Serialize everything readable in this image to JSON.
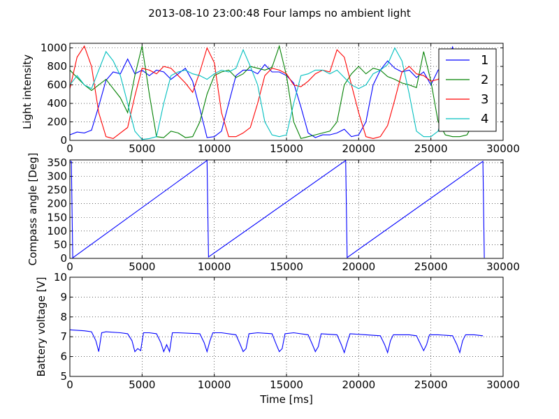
{
  "title": "2013-08-10 23:00:48 Four lamps no ambient light",
  "colors": {
    "series_1": "#0000ff",
    "series_2": "#008000",
    "series_3": "#ff0000",
    "series_4": "#00bfbf"
  },
  "chart_data": [
    {
      "type": "line",
      "ylabel": "Light intensity",
      "xlim": [
        0,
        30000
      ],
      "ylim": [
        0,
        1050
      ],
      "xticks": [
        "0",
        "5000",
        "10000",
        "15000",
        "20000",
        "25000",
        "30000"
      ],
      "yticks": [
        "0",
        "200",
        "400",
        "600",
        "800",
        "1000"
      ],
      "grid": true,
      "legend": "top-right",
      "series": [
        {
          "name": "1",
          "color": "#0000ff",
          "x": [
            0,
            500,
            1000,
            1500,
            2000,
            2500,
            3000,
            3500,
            4000,
            4500,
            5000,
            5500,
            6000,
            6500,
            7000,
            7500,
            8000,
            8500,
            9000,
            9500,
            10000,
            10500,
            11000,
            11500,
            12000,
            12500,
            13000,
            13500,
            14000,
            14500,
            15000,
            15500,
            16000,
            16500,
            17000,
            17500,
            18000,
            18500,
            19000,
            19500,
            20000,
            20500,
            21000,
            21500,
            22000,
            22500,
            23000,
            23500,
            24000,
            24500,
            25000,
            25500,
            26000,
            26500,
            27000,
            27500,
            28000,
            28500
          ],
          "y": [
            60,
            90,
            80,
            110,
            370,
            650,
            740,
            720,
            880,
            720,
            760,
            700,
            760,
            740,
            660,
            720,
            780,
            640,
            340,
            30,
            40,
            100,
            400,
            700,
            760,
            760,
            720,
            820,
            740,
            740,
            700,
            620,
            360,
            80,
            30,
            60,
            60,
            80,
            120,
            40,
            60,
            200,
            600,
            760,
            860,
            780,
            740,
            760,
            680,
            740,
            600,
            760,
            820,
            1010,
            700,
            760,
            740,
            780
          ]
        },
        {
          "name": "2",
          "color": "#008000",
          "x": [
            0,
            500,
            1000,
            1500,
            2000,
            2500,
            3000,
            3500,
            4000,
            4500,
            5000,
            5500,
            6000,
            6500,
            7000,
            7500,
            8000,
            8500,
            9000,
            9500,
            10000,
            10500,
            11000,
            11500,
            12000,
            12500,
            13000,
            13500,
            14000,
            14500,
            15000,
            15500,
            16000,
            16500,
            17000,
            17500,
            18000,
            18500,
            19000,
            19500,
            20000,
            20500,
            21000,
            21500,
            22000,
            22500,
            23000,
            23500,
            24000,
            24500,
            25000,
            25500,
            26000,
            26500,
            27000,
            27500,
            28000,
            28500
          ],
          "y": [
            760,
            680,
            600,
            540,
            600,
            660,
            560,
            460,
            300,
            700,
            1020,
            500,
            40,
            30,
            100,
            80,
            30,
            40,
            200,
            500,
            700,
            740,
            760,
            680,
            720,
            800,
            780,
            760,
            790,
            1020,
            700,
            200,
            20,
            40,
            60,
            80,
            100,
            200,
            600,
            720,
            800,
            720,
            780,
            760,
            690,
            660,
            620,
            600,
            570,
            960,
            640,
            200,
            60,
            40,
            40,
            60,
            200,
            500
          ]
        },
        {
          "name": "3",
          "color": "#ff0000",
          "x": [
            0,
            500,
            1000,
            1500,
            2000,
            2500,
            3000,
            3500,
            4000,
            4500,
            5000,
            5500,
            6000,
            6500,
            7000,
            7500,
            8000,
            8500,
            9000,
            9500,
            10000,
            10500,
            11000,
            11500,
            12000,
            12500,
            13000,
            13500,
            14000,
            14500,
            15000,
            15500,
            16000,
            16500,
            17000,
            17500,
            18000,
            18500,
            19000,
            19500,
            20000,
            20500,
            21000,
            21500,
            22000,
            22500,
            23000,
            23500,
            24000,
            24500,
            25000,
            25500,
            26000,
            26500,
            27000,
            27500,
            28000,
            28500
          ],
          "y": [
            560,
            900,
            1020,
            800,
            300,
            40,
            20,
            80,
            140,
            480,
            780,
            760,
            720,
            800,
            780,
            700,
            620,
            520,
            740,
            1000,
            840,
            300,
            40,
            40,
            80,
            140,
            400,
            700,
            780,
            760,
            720,
            600,
            580,
            640,
            720,
            760,
            740,
            980,
            900,
            600,
            300,
            40,
            20,
            40,
            160,
            440,
            740,
            800,
            720,
            700,
            640,
            660,
            740,
            820,
            800,
            740,
            640,
            600
          ]
        },
        {
          "name": "4",
          "color": "#00bfbf",
          "x": [
            0,
            500,
            1000,
            1500,
            2000,
            2500,
            3000,
            3500,
            4000,
            4500,
            5000,
            5500,
            6000,
            6500,
            7000,
            7500,
            8000,
            8500,
            9000,
            9500,
            10000,
            10500,
            11000,
            11500,
            12000,
            12500,
            13000,
            13500,
            14000,
            14500,
            15000,
            15500,
            16000,
            16500,
            17000,
            17500,
            18000,
            18500,
            19000,
            19500,
            20000,
            20500,
            21000,
            21500,
            22000,
            22500,
            23000,
            23500,
            24000,
            24500,
            25000,
            25500,
            26000,
            26500,
            27000,
            27500,
            28000,
            28500
          ],
          "y": [
            600,
            700,
            600,
            560,
            760,
            960,
            860,
            700,
            400,
            100,
            10,
            20,
            40,
            400,
            700,
            740,
            760,
            720,
            700,
            660,
            720,
            760,
            740,
            780,
            980,
            800,
            600,
            200,
            60,
            40,
            60,
            400,
            700,
            720,
            760,
            760,
            720,
            760,
            680,
            600,
            560,
            600,
            720,
            760,
            820,
            1000,
            860,
            500,
            100,
            40,
            40,
            100,
            400,
            620,
            720,
            740,
            740,
            700
          ]
        }
      ]
    },
    {
      "type": "line",
      "ylabel": "Compass angle [Deg]",
      "xlim": [
        0,
        30000
      ],
      "ylim": [
        0,
        360
      ],
      "xticks": [
        "0",
        "5000",
        "10000",
        "15000",
        "20000",
        "25000",
        "30000"
      ],
      "yticks": [
        "0",
        "50",
        "100",
        "150",
        "200",
        "250",
        "300",
        "350"
      ],
      "grid": true,
      "series": [
        {
          "color": "#0000ff",
          "x": [
            0,
            100,
            200,
            9500,
            9600,
            19100,
            19200,
            28600,
            28700
          ],
          "y": [
            355,
            355,
            2,
            358,
            5,
            358,
            3,
            355,
            2
          ]
        }
      ]
    },
    {
      "type": "line",
      "ylabel": "Battery voltage [V]",
      "xlabel": "Time [ms]",
      "xlim": [
        0,
        30000
      ],
      "ylim": [
        5,
        10
      ],
      "xticks": [
        "0",
        "5000",
        "10000",
        "15000",
        "20000",
        "25000",
        "30000"
      ],
      "yticks": [
        "5",
        "6",
        "7",
        "8",
        "9",
        "10"
      ],
      "grid": true,
      "series": [
        {
          "color": "#0000ff",
          "x": [
            0,
            1000,
            1500,
            1800,
            2000,
            2200,
            2500,
            3500,
            4000,
            4300,
            4500,
            4700,
            4900,
            5100,
            5500,
            6000,
            6300,
            6500,
            6700,
            6900,
            7100,
            7500,
            9000,
            9300,
            9500,
            9700,
            9900,
            10500,
            11500,
            11800,
            12000,
            12200,
            12400,
            13000,
            14000,
            14300,
            14500,
            14700,
            14900,
            15500,
            16500,
            16800,
            17000,
            17200,
            17400,
            18500,
            18800,
            19000,
            19200,
            19400,
            20500,
            21500,
            21800,
            22000,
            22200,
            22400,
            23500,
            24000,
            24300,
            24500,
            24700,
            24900,
            25500,
            26500,
            26800,
            27000,
            27200,
            27400,
            28000,
            28600
          ],
          "y": [
            7.35,
            7.3,
            7.25,
            6.8,
            6.25,
            7.2,
            7.25,
            7.2,
            7.15,
            6.8,
            6.25,
            6.4,
            6.3,
            7.2,
            7.2,
            7.15,
            6.7,
            6.25,
            6.6,
            6.25,
            7.2,
            7.2,
            7.15,
            6.7,
            6.25,
            6.8,
            7.2,
            7.2,
            7.1,
            6.6,
            6.25,
            6.4,
            7.15,
            7.2,
            7.15,
            6.6,
            6.25,
            6.4,
            7.15,
            7.2,
            7.1,
            6.6,
            6.25,
            6.5,
            7.15,
            7.1,
            6.6,
            6.2,
            6.7,
            7.15,
            7.1,
            7.05,
            6.6,
            6.2,
            6.8,
            7.1,
            7.1,
            7.05,
            6.6,
            6.3,
            6.6,
            7.1,
            7.1,
            7.05,
            6.6,
            6.2,
            6.8,
            7.1,
            7.1,
            7.05
          ]
        }
      ]
    }
  ]
}
